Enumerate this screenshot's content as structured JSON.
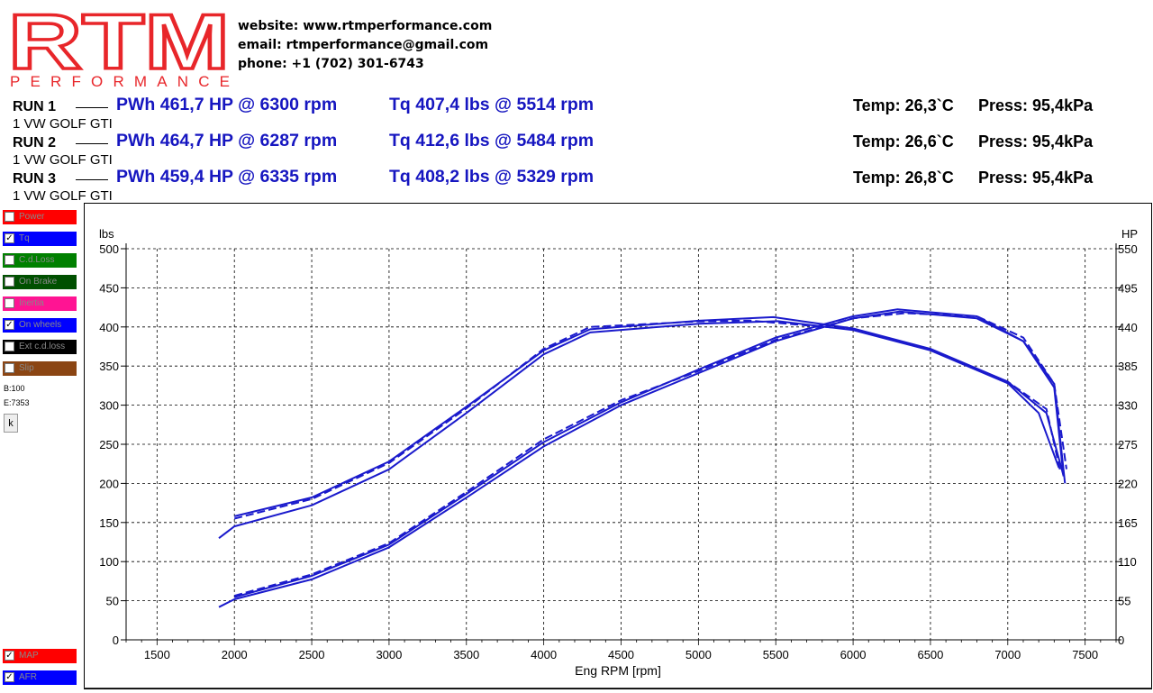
{
  "logo": {
    "text_main": "RTM",
    "text_sub": "PERFORMANCE",
    "color": "#e8262a"
  },
  "contact": {
    "website": "website: www.rtmperformance.com",
    "email": "email: rtmperformance@gmail.com",
    "phone": "phone: +1 (702) 301-6743"
  },
  "runs": [
    {
      "name": "RUN 1",
      "car": "1 VW GOLF GTI",
      "pwh": "PWh  461,7 HP @ 6300 rpm",
      "tq": "Tq 407,4 lbs @ 5514 rpm",
      "temp": "Temp: 26,3`C",
      "press": "Press: 95,4kPa"
    },
    {
      "name": "RUN 2",
      "car": "1 VW GOLF GTI",
      "pwh": "PWh  464,7 HP @ 6287 rpm",
      "tq": "Tq 412,6 lbs @ 5484 rpm",
      "temp": "Temp: 26,6`C",
      "press": "Press: 95,4kPa"
    },
    {
      "name": "RUN 3",
      "car": "1 VW GOLF GTI",
      "pwh": "PWh  459,4 HP @ 6335 rpm",
      "tq": "Tq 408,2 lbs @ 5329 rpm",
      "temp": "Temp: 26,8`C",
      "press": "Press: 95,4kPa"
    }
  ],
  "legend": [
    {
      "label": "Power",
      "color": "#ff0000",
      "checked": false
    },
    {
      "label": "Tq",
      "color": "#0000ff",
      "checked": true
    },
    {
      "label": "C.d.Loss",
      "color": "#008000",
      "checked": false
    },
    {
      "label": "On Brake",
      "color": "#005000",
      "checked": false
    },
    {
      "label": "Inertia",
      "color": "#ff1493",
      "checked": false
    },
    {
      "label": "On wheels",
      "color": "#0000ff",
      "checked": true
    },
    {
      "label": "Ext c.d.loss",
      "color": "#000000",
      "checked": false
    },
    {
      "label": "Slip",
      "color": "#8b4513",
      "checked": false
    }
  ],
  "legend_bottom": [
    {
      "label": "MAP",
      "color": "#ff0000",
      "checked": true
    },
    {
      "label": "AFR",
      "color": "#0000ff",
      "checked": true
    }
  ],
  "side": {
    "b": "B:100",
    "e": "E:7353",
    "k_button": "k"
  },
  "chart_data": {
    "type": "line",
    "xlabel": "Eng RPM [rpm]",
    "ylabel_left": "lbs",
    "ylabel_right": "HP",
    "xlim": [
      1300,
      7700
    ],
    "ylim_left": [
      0,
      500
    ],
    "ylim_right": [
      0,
      550
    ],
    "x_ticks": [
      1500,
      2000,
      2500,
      3000,
      3500,
      4000,
      4500,
      5000,
      5500,
      6000,
      6500,
      7000,
      7500
    ],
    "y_ticks_left": [
      0,
      50,
      100,
      150,
      200,
      250,
      300,
      350,
      400,
      450,
      500
    ],
    "y_ticks_right": [
      0,
      55,
      110,
      165,
      220,
      275,
      330,
      385,
      440,
      495,
      550
    ],
    "grid": true,
    "series_color": "#1a1acc",
    "series": [
      {
        "name": "RUN 1 Tq",
        "axis": "left",
        "x": [
          1900,
          2000,
          2500,
          3000,
          3500,
          4000,
          4300,
          5000,
          5514,
          6000,
          6500,
          7000,
          7200,
          7330
        ],
        "y": [
          130,
          145,
          172,
          218,
          290,
          365,
          393,
          404,
          407.4,
          396,
          370,
          328,
          290,
          220
        ]
      },
      {
        "name": "RUN 2 Tq",
        "axis": "left",
        "x": [
          2000,
          2500,
          3000,
          3500,
          4000,
          4300,
          5000,
          5484,
          6000,
          6500,
          7000,
          7250,
          7360
        ],
        "y": [
          158,
          182,
          228,
          298,
          370,
          397,
          408,
          412.6,
          398,
          372,
          330,
          290,
          210
        ]
      },
      {
        "name": "RUN 3 Tq",
        "axis": "left",
        "dashed": true,
        "x": [
          2000,
          2500,
          3000,
          3500,
          4000,
          4300,
          5000,
          5329,
          6000,
          6500,
          7000,
          7250,
          7340
        ],
        "y": [
          155,
          180,
          226,
          296,
          372,
          400,
          407,
          408.2,
          397,
          371,
          330,
          295,
          215
        ]
      },
      {
        "name": "RUN 1 PWh",
        "axis": "right",
        "x": [
          1900,
          2000,
          2500,
          3000,
          3500,
          4000,
          4500,
          5000,
          5500,
          6000,
          6300,
          6800,
          7100,
          7300,
          7370
        ],
        "y": [
          46,
          57,
          85,
          130,
          200,
          272,
          330,
          375,
          420,
          452,
          461.7,
          452,
          420,
          360,
          220
        ]
      },
      {
        "name": "RUN 2 PWh",
        "axis": "right",
        "x": [
          2000,
          2500,
          3000,
          3500,
          4000,
          4500,
          5000,
          5500,
          6000,
          6287,
          6800,
          7100,
          7300,
          7360
        ],
        "y": [
          60,
          90,
          134,
          205,
          278,
          334,
          380,
          425,
          455,
          464.7,
          455,
          420,
          355,
          230
        ]
      },
      {
        "name": "RUN 3 PWh",
        "axis": "right",
        "dashed": true,
        "x": [
          2000,
          2500,
          3000,
          3500,
          4000,
          4500,
          5000,
          5500,
          6000,
          6335,
          6800,
          7100,
          7300,
          7380
        ],
        "y": [
          62,
          92,
          136,
          208,
          282,
          337,
          378,
          422,
          452,
          459.4,
          455,
          425,
          360,
          240
        ]
      }
    ]
  }
}
